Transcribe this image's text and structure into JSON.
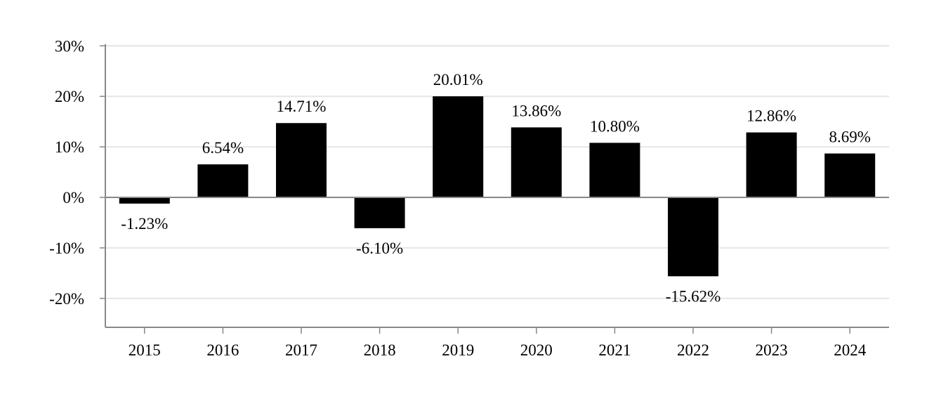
{
  "chart_data": {
    "type": "bar",
    "title": "",
    "xlabel": "",
    "ylabel": "",
    "categories": [
      "2015",
      "2016",
      "2017",
      "2018",
      "2019",
      "2020",
      "2021",
      "2022",
      "2023",
      "2024"
    ],
    "values": [
      -1.23,
      6.54,
      14.71,
      -6.1,
      20.01,
      13.86,
      10.8,
      -15.62,
      12.86,
      8.69
    ],
    "data_labels": [
      "-1.23%",
      "6.54%",
      "14.71%",
      "-6.10%",
      "20.01%",
      "13.86%",
      "10.80%",
      "-15.62%",
      "12.86%",
      "8.69%"
    ],
    "y_ticks": [
      30,
      20,
      10,
      0,
      -10,
      -20
    ],
    "y_tick_labels": [
      "30%",
      "20%",
      "10%",
      "0%",
      "-10%",
      "-20%"
    ],
    "ylim": [
      -26,
      30
    ],
    "grid": true,
    "legend": "none",
    "colors": {
      "bar": "#000000",
      "grid": "#e6e6e6",
      "axis": "#888888"
    }
  }
}
